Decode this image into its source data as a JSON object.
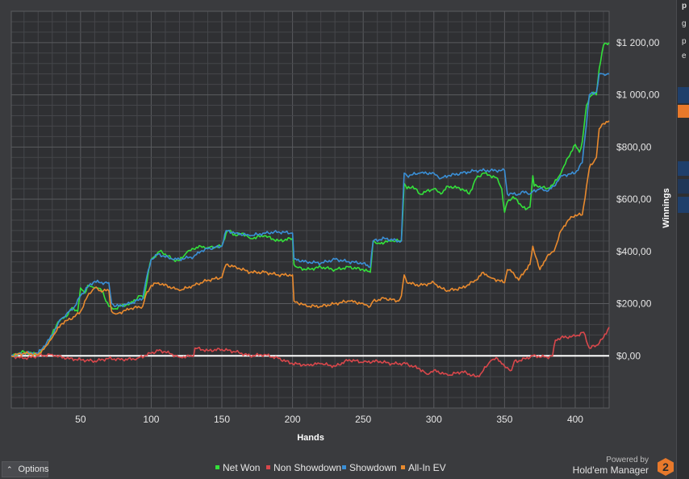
{
  "chart_data": {
    "type": "line",
    "xlabel": "Hands",
    "ylabel": "Winnings",
    "x_ticks": [
      50,
      100,
      150,
      200,
      250,
      300,
      350,
      400
    ],
    "y_ticks": [
      {
        "value": 0,
        "label": "$0,00"
      },
      {
        "value": 200,
        "label": "$200,00"
      },
      {
        "value": 400,
        "label": "$400,00"
      },
      {
        "value": 600,
        "label": "$600,00"
      },
      {
        "value": 800,
        "label": "$800,00"
      },
      {
        "value": 1000,
        "label": "$1 000,00"
      },
      {
        "value": 1200,
        "label": "$1 200,00"
      }
    ],
    "xlim": [
      1,
      424
    ],
    "ylim": [
      -200,
      1320
    ],
    "grid": true,
    "legend_position": "bottom-center",
    "zero_line_color": "#ffffff",
    "series": [
      {
        "name": "Net Won",
        "color": "#33e03a",
        "x": [
          1,
          10,
          20,
          26,
          28,
          30,
          34,
          36,
          40,
          44,
          48,
          50,
          53,
          55,
          58,
          62,
          65,
          70,
          72,
          74,
          78,
          85,
          92,
          95,
          98,
          100,
          102,
          106,
          110,
          115,
          120,
          125,
          130,
          135,
          140,
          150,
          153,
          155,
          160,
          165,
          170,
          180,
          190,
          200,
          201,
          203,
          210,
          220,
          230,
          240,
          250,
          255,
          257,
          260,
          270,
          277,
          279,
          281,
          285,
          290,
          300,
          305,
          310,
          320,
          325,
          330,
          335,
          340,
          345,
          348,
          350,
          352,
          356,
          365,
          368,
          370,
          371,
          375,
          380,
          385,
          390,
          395,
          400,
          403,
          405,
          408,
          410,
          413,
          415,
          417,
          420,
          424
        ],
        "y": [
          0,
          15,
          5,
          40,
          60,
          85,
          130,
          140,
          150,
          185,
          170,
          260,
          240,
          270,
          265,
          260,
          250,
          190,
          185,
          180,
          190,
          200,
          230,
          220,
          320,
          370,
          380,
          400,
          390,
          370,
          365,
          395,
          410,
          420,
          415,
          420,
          470,
          480,
          460,
          470,
          450,
          460,
          440,
          450,
          350,
          340,
          330,
          340,
          330,
          340,
          330,
          320,
          440,
          430,
          440,
          440,
          660,
          640,
          650,
          620,
          640,
          620,
          650,
          640,
          620,
          680,
          700,
          690,
          680,
          640,
          550,
          590,
          610,
          560,
          570,
          690,
          650,
          650,
          640,
          660,
          700,
          760,
          810,
          780,
          820,
          960,
          990,
          1010,
          1000,
          1100,
          1190,
          1200
        ]
      },
      {
        "name": "Non Showdown",
        "color": "#d9474b",
        "x": [
          1,
          10,
          20,
          30,
          40,
          50,
          60,
          70,
          80,
          90,
          100,
          105,
          110,
          120,
          130,
          131,
          140,
          150,
          160,
          170,
          180,
          190,
          200,
          210,
          220,
          230,
          240,
          250,
          260,
          270,
          280,
          290,
          295,
          300,
          310,
          320,
          330,
          333,
          340,
          345,
          350,
          355,
          357,
          360,
          370,
          380,
          384,
          386,
          390,
          400,
          406,
          410,
          415,
          420,
          424
        ],
        "y": [
          0,
          -10,
          0,
          5,
          -10,
          -15,
          -20,
          -10,
          -15,
          -10,
          10,
          20,
          15,
          -5,
          0,
          30,
          20,
          25,
          15,
          0,
          5,
          -10,
          -30,
          -35,
          -30,
          -40,
          -15,
          -25,
          -20,
          -30,
          -30,
          -50,
          -70,
          -55,
          -75,
          -60,
          -80,
          -70,
          -20,
          -10,
          -40,
          -55,
          -20,
          -20,
          0,
          -5,
          0,
          60,
          70,
          75,
          90,
          30,
          40,
          70,
          110
        ]
      },
      {
        "name": "Showdown",
        "color": "#3a8fd6",
        "x": [
          1,
          10,
          20,
          26,
          30,
          36,
          40,
          46,
          50,
          56,
          60,
          64,
          70,
          72,
          75,
          85,
          94,
          96,
          100,
          105,
          115,
          120,
          130,
          135,
          140,
          150,
          153,
          160,
          170,
          180,
          190,
          200,
          201,
          210,
          220,
          230,
          240,
          250,
          255,
          257,
          265,
          275,
          277,
          279,
          281,
          290,
          300,
          305,
          310,
          320,
          330,
          340,
          350,
          352,
          356,
          360,
          365,
          368,
          370,
          375,
          380,
          385,
          390,
          400,
          405,
          410,
          415,
          417,
          420,
          424
        ],
        "y": [
          0,
          10,
          10,
          50,
          80,
          140,
          160,
          190,
          230,
          270,
          285,
          280,
          280,
          200,
          190,
          200,
          220,
          280,
          370,
          390,
          370,
          370,
          380,
          400,
          410,
          420,
          480,
          470,
          460,
          470,
          475,
          470,
          370,
          360,
          355,
          370,
          360,
          355,
          340,
          440,
          450,
          440,
          440,
          700,
          690,
          700,
          700,
          680,
          690,
          700,
          710,
          710,
          710,
          620,
          620,
          620,
          630,
          620,
          630,
          640,
          630,
          650,
          690,
          700,
          740,
          1000,
          1010,
          1080,
          1080,
          1080
        ]
      },
      {
        "name": "All-In EV",
        "color": "#e98a2e",
        "x": [
          1,
          10,
          20,
          26,
          30,
          36,
          40,
          46,
          50,
          56,
          60,
          64,
          70,
          72,
          75,
          85,
          94,
          96,
          100,
          105,
          115,
          120,
          130,
          135,
          140,
          150,
          153,
          160,
          170,
          180,
          190,
          200,
          201,
          210,
          220,
          230,
          240,
          250,
          255,
          257,
          265,
          275,
          277,
          279,
          281,
          290,
          300,
          305,
          310,
          320,
          330,
          335,
          340,
          350,
          352,
          356,
          360,
          365,
          368,
          370,
          375,
          380,
          385,
          390,
          395,
          400,
          405,
          410,
          415,
          417,
          420,
          424
        ],
        "y": [
          0,
          10,
          5,
          40,
          70,
          120,
          135,
          150,
          170,
          240,
          260,
          250,
          250,
          170,
          160,
          180,
          190,
          230,
          270,
          280,
          260,
          250,
          270,
          280,
          290,
          300,
          350,
          340,
          320,
          320,
          310,
          310,
          210,
          190,
          190,
          200,
          210,
          200,
          190,
          210,
          220,
          210,
          230,
          310,
          280,
          270,
          280,
          260,
          250,
          260,
          290,
          320,
          300,
          280,
          330,
          320,
          290,
          330,
          350,
          420,
          330,
          380,
          400,
          480,
          520,
          540,
          540,
          720,
          760,
          870,
          890,
          900
        ]
      }
    ]
  },
  "options": {
    "label": "Options"
  },
  "branding": {
    "powered": "Powered by",
    "product": "Hold'em Manager",
    "badge": "2"
  },
  "side_panel": {
    "fragments": [
      "p",
      "g",
      "p",
      "e"
    ]
  }
}
